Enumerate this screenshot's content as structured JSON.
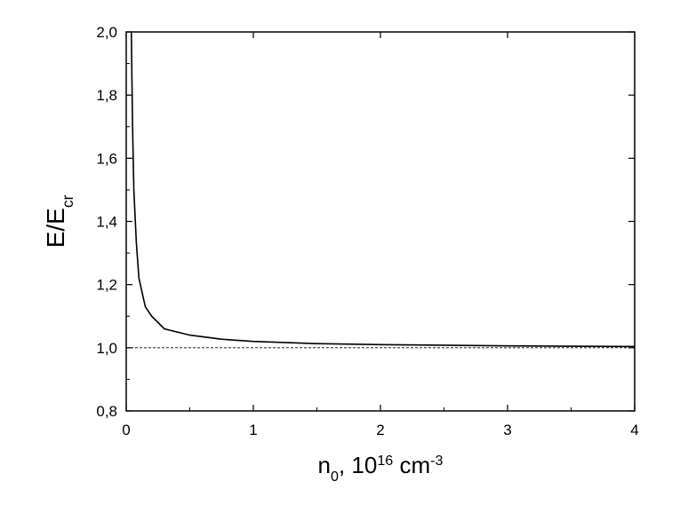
{
  "chart_data": {
    "type": "line",
    "xlabel_parts": [
      {
        "text": "n",
        "shift": "base"
      },
      {
        "text": "0",
        "shift": "sub"
      },
      {
        "text": ", 10",
        "shift": "base"
      },
      {
        "text": "16",
        "shift": "super"
      },
      {
        "text": " cm",
        "shift": "base"
      },
      {
        "text": "-3",
        "shift": "super"
      }
    ],
    "ylabel_parts": [
      {
        "text": "E/E",
        "shift": "base"
      },
      {
        "text": "cr",
        "shift": "sub"
      }
    ],
    "x": [
      0.04,
      0.05,
      0.06,
      0.08,
      0.1,
      0.15,
      0.2,
      0.3,
      0.5,
      0.75,
      1,
      1.5,
      2,
      3,
      4
    ],
    "series": [
      {
        "color": "#000000",
        "values": [
          2.0,
          1.7,
          1.5,
          1.33,
          1.22,
          1.13,
          1.1,
          1.06,
          1.04,
          1.027,
          1.02,
          1.013,
          1.01,
          1.006,
          1.004
        ]
      }
    ],
    "hline": {
      "value": 1.0,
      "style": "dashed"
    },
    "xlim": [
      0,
      4
    ],
    "xticks": [
      0,
      1,
      2,
      3,
      4
    ],
    "ylim": [
      0.8,
      2.0
    ],
    "yticks": [
      {
        "value": 0.8,
        "label": "0,8"
      },
      {
        "value": 1.0,
        "label": "1,0"
      },
      {
        "value": 1.2,
        "label": "1,2"
      },
      {
        "value": 1.4,
        "label": "1,4"
      },
      {
        "value": 1.6,
        "label": "1,6"
      },
      {
        "value": 1.8,
        "label": "1,8"
      },
      {
        "value": 2.0,
        "label": "2,0"
      }
    ],
    "grid": false
  }
}
